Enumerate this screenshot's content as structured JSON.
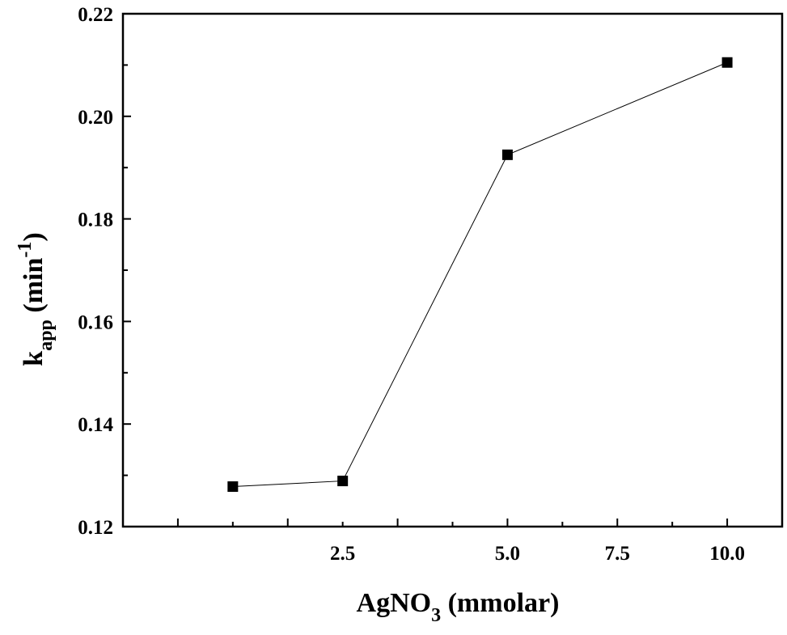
{
  "chart_data": {
    "type": "line",
    "x_label": {
      "main": "AgNO",
      "sub": "3",
      "rest": " (mmolar)"
    },
    "y_label": {
      "main": "k",
      "sub": "app",
      "rest": " (min",
      "sup": "-1",
      "end": ")"
    },
    "x_ticks": [
      {
        "value": 2.5,
        "label": "2.5"
      },
      {
        "value": 5.0,
        "label": "5.0"
      },
      {
        "value": 7.5,
        "label": "7.5"
      },
      {
        "value": 10.0,
        "label": "10.0"
      }
    ],
    "x_tick_positions": [
      1,
      2,
      3,
      4,
      5,
      6
    ],
    "y_ticks": [
      "0.12",
      "0.14",
      "0.16",
      "0.18",
      "0.20",
      "0.22"
    ],
    "y_range": [
      0.12,
      0.22
    ],
    "series": [
      {
        "marker": "square",
        "color": "#000000",
        "points": [
          {
            "pos": 1.5,
            "x": "1.5",
            "y": 0.1278
          },
          {
            "pos": 2.5,
            "x": "2.5",
            "y": 0.1289
          },
          {
            "pos": 4.0,
            "x": "5.0",
            "y": 0.1925
          },
          {
            "pos": 6.0,
            "x": "10.0",
            "y": 0.2105
          }
        ]
      }
    ]
  }
}
